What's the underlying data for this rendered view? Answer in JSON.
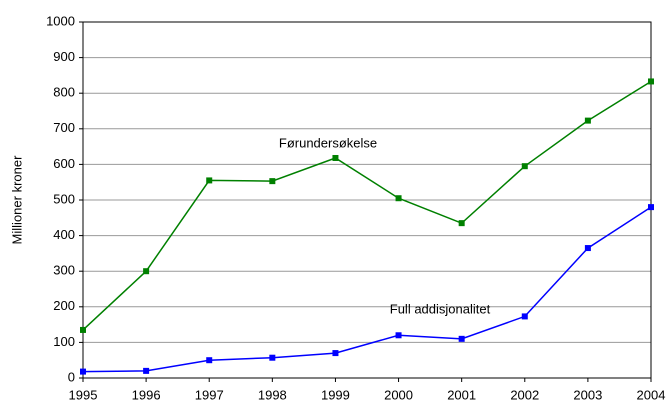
{
  "chart_data": {
    "type": "line",
    "y_label": "Millioner kroner",
    "x": [
      1995,
      1996,
      1997,
      1998,
      1999,
      2000,
      2001,
      2002,
      2003,
      2004
    ],
    "xlim": [
      1995,
      2004
    ],
    "xticks": [
      1995,
      1996,
      1997,
      1998,
      1999,
      2000,
      2001,
      2002,
      2003,
      2004
    ],
    "ylim": [
      0,
      1000
    ],
    "yticks": [
      0,
      100,
      200,
      300,
      400,
      500,
      600,
      700,
      800,
      900,
      1000
    ],
    "grid": true,
    "series": [
      {
        "name": "Førundersøkelse",
        "color": "#008000",
        "values": [
          135,
          300,
          555,
          553,
          618,
          505,
          435,
          595,
          723,
          833
        ]
      },
      {
        "name": "Full addisjonalitet",
        "color": "#0000ff",
        "values": [
          18,
          20,
          50,
          57,
          70,
          120,
          110,
          173,
          365,
          480
        ]
      }
    ]
  }
}
